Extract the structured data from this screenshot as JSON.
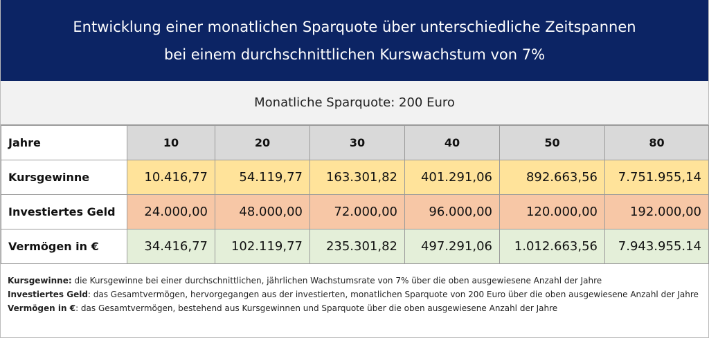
{
  "header": {
    "title_line1": "Entwicklung einer monatlichen Sparquote über unterschiedliche Zeitspannen",
    "title_line2": "bei einem durchschnittlichen Kurswachstum von 7%"
  },
  "subheader": "Monatliche Sparquote: 200 Euro",
  "table": {
    "corner_label": "Jahre",
    "years": [
      "10",
      "20",
      "30",
      "40",
      "50",
      "80"
    ],
    "rows": [
      {
        "label": "Kursgewinne",
        "values": [
          "10.416,77",
          "54.119,77",
          "163.301,82",
          "401.291,06",
          "892.663,56",
          "7.751.955,14"
        ]
      },
      {
        "label": "Investiertes Geld",
        "values": [
          "24.000,00",
          "48.000,00",
          "72.000,00",
          "96.000,00",
          "120.000,00",
          "192.000,00"
        ]
      },
      {
        "label": "Vermögen in €",
        "values": [
          "34.416,77",
          "102.119,77",
          "235.301,82",
          "497.291,06",
          "1.012.663,56",
          "7.943.955.14"
        ]
      }
    ]
  },
  "notes": [
    {
      "term": "Kursgewinne:",
      "text": " die Kursgewinne bei einer durchschnittlichen, jährlichen Wachstumsrate von 7% über die oben ausgewiesene Anzahl der Jahre"
    },
    {
      "term": "Investiertes Geld",
      "text": ": das Gesamtvermögen, hervorgegangen aus der investierten, monatlichen Sparquote von 200 Euro über die oben ausgewiesene Anzahl der Jahre"
    },
    {
      "term": "Vermögen in €",
      "text": ": das Gesamtvermögen, bestehend aus Kursgewinnen und Sparquote über die oben ausgewiesene Anzahl der Jahre"
    }
  ],
  "colors": {
    "banner_bg": "#0c2464",
    "kursgewinne_bg": "#ffe39a",
    "investiert_bg": "#f7c7a6",
    "vermoegen_bg": "#e4efd9",
    "year_header_bg": "#d9d9d9"
  }
}
